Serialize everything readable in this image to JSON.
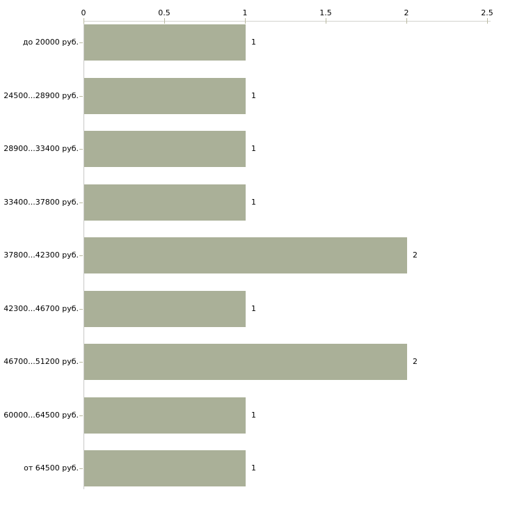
{
  "chart_data": {
    "type": "bar",
    "orientation": "horizontal",
    "title": "",
    "xlabel": "",
    "ylabel": "",
    "categories": [
      "до 20000 руб.",
      "24500...28900 руб.",
      "28900...33400 руб.",
      "33400...37800 руб.",
      "37800...42300 руб.",
      "42300...46700 руб.",
      "46700...51200 руб.",
      "60000...64500 руб.",
      "от 64500 руб."
    ],
    "values": [
      1,
      1,
      1,
      1,
      2,
      1,
      2,
      1,
      1
    ],
    "value_labels": [
      "1",
      "1",
      "1",
      "1",
      "2",
      "1",
      "2",
      "1",
      "1"
    ],
    "x_ticks": [
      "0",
      "0.5",
      "1",
      "1.5",
      "2",
      "2.5"
    ],
    "xlim": [
      0,
      2.5
    ],
    "axis_position": "top",
    "grid": false,
    "legend": "none",
    "colors": {
      "bar_fill": "#aab098",
      "axis_line": "#d2d2cd",
      "y_axis_line": "#c8c8c6",
      "tick_mark": "#b9b9a0",
      "text": "#000000",
      "background": "#ffffff"
    }
  }
}
